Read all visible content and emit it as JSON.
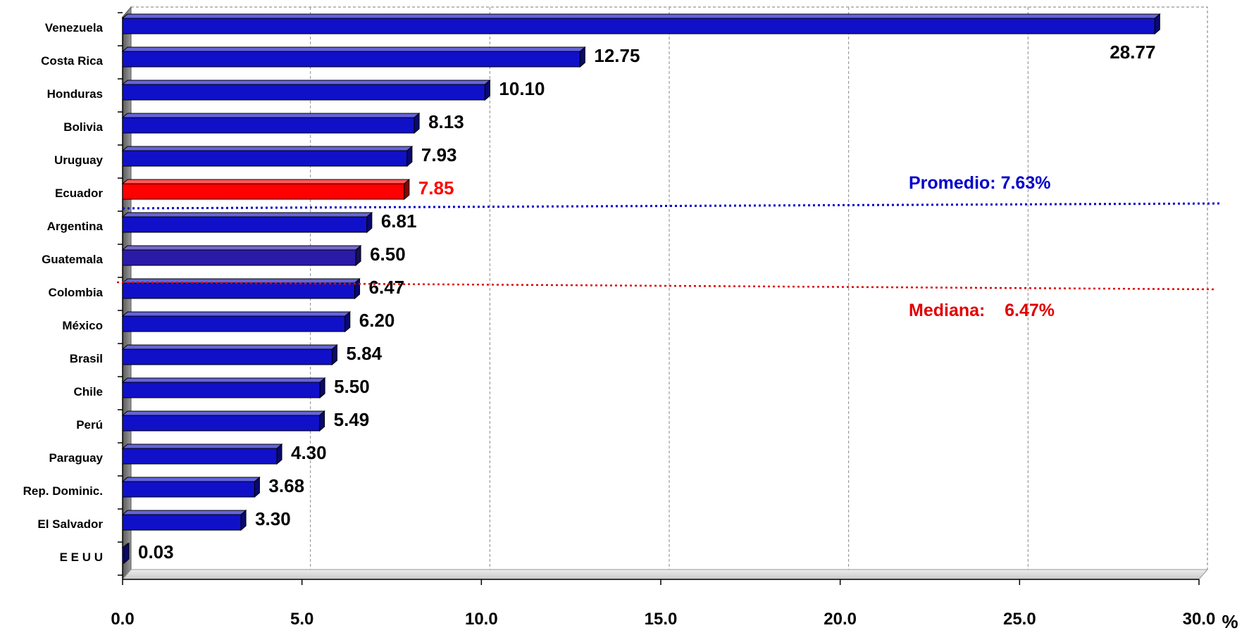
{
  "chart_data": {
    "type": "bar",
    "orientation": "horizontal",
    "categories": [
      "Venezuela",
      "Costa Rica",
      "Honduras",
      "Bolivia",
      "Uruguay",
      "Ecuador",
      "Argentina",
      "Guatemala",
      "Colombia",
      "México",
      "Brasil",
      "Chile",
      "Perú",
      "Paraguay",
      "Rep. Dominic.",
      "El Salvador",
      "E E U U"
    ],
    "values": [
      28.77,
      12.75,
      10.1,
      8.13,
      7.93,
      7.85,
      6.81,
      6.5,
      6.47,
      6.2,
      5.84,
      5.5,
      5.49,
      4.3,
      3.68,
      3.3,
      0.03
    ],
    "value_labels": [
      "28.77",
      "12.75",
      "10.10",
      "8.13",
      "7.93",
      "7.85",
      "6.81",
      "6.50",
      "6.47",
      "6.20",
      "5.84",
      "5.50",
      "5.49",
      "4.30",
      "3.68",
      "3.30",
      "0.03"
    ],
    "highlight_category": "Ecuador",
    "x_ticks": [
      "0.0",
      "5.0",
      "10.0",
      "15.0",
      "20.0",
      "25.0",
      "30.0"
    ],
    "xlim": [
      0,
      30
    ],
    "xlabel": "%",
    "grid": true,
    "colors": {
      "bar": "#1010c8",
      "highlight": "#ff0000",
      "guatemala": "#2a1aa8",
      "average": "#0000cc",
      "median": "#e00000"
    },
    "reference_lines": [
      {
        "name": "Promedio",
        "label": "Promedio: 7.63%",
        "value": 7.63,
        "color": "#0000cc"
      },
      {
        "name": "Mediana",
        "label": "Mediana:    6.47%",
        "value": 6.47,
        "color": "#e00000"
      }
    ]
  }
}
